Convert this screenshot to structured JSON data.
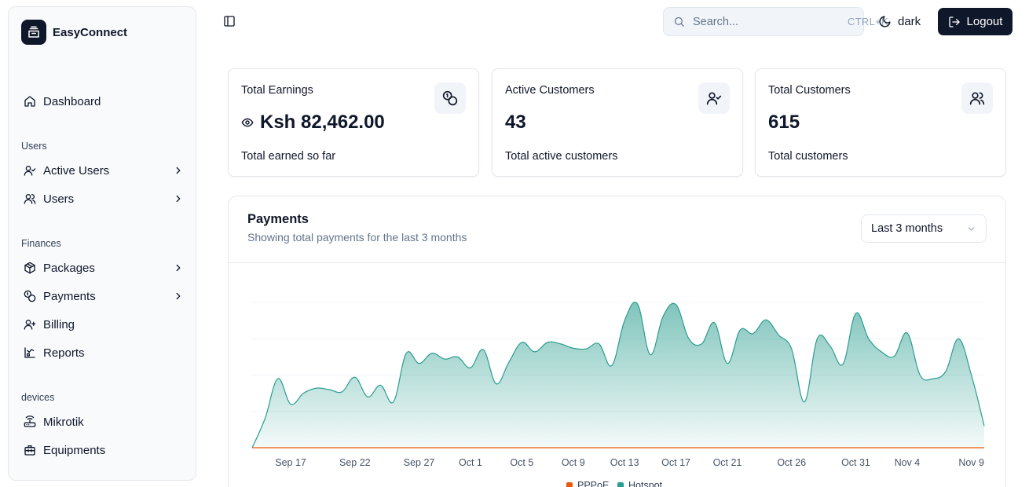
{
  "app": {
    "name": "EasyConnect"
  },
  "sidebar": {
    "dashboard": "Dashboard",
    "groups": {
      "users": "Users",
      "finances": "Finances",
      "devices": "devices"
    },
    "items": {
      "active_users": "Active Users",
      "users": "Users",
      "packages": "Packages",
      "payments": "Payments",
      "billing": "Billing",
      "reports": "Reports",
      "mikrotik": "Mikrotik",
      "equipments": "Equipments"
    }
  },
  "header": {
    "search_placeholder": "Search...",
    "search_shortcut": "CTRL+K",
    "theme_label": "dark",
    "logout_label": "Logout"
  },
  "stats": {
    "earnings": {
      "title": "Total Earnings",
      "value": "Ksh 82,462.00",
      "desc": "Total earned so far"
    },
    "active": {
      "title": "Active Customers",
      "value": "43",
      "desc": "Total active customers"
    },
    "total": {
      "title": "Total Customers",
      "value": "615",
      "desc": "Total customers"
    }
  },
  "payments": {
    "title": "Payments",
    "subtitle": "Showing total payments for the last 3 months",
    "range": "Last 3 months"
  },
  "colors": {
    "hotspot": "#2a9d8f",
    "pppoe": "#e8590c",
    "accent": "#0f172a"
  },
  "chart_data": {
    "type": "area",
    "x_ticks": [
      "Sep 17",
      "Sep 22",
      "Sep 27",
      "Oct 1",
      "Oct 5",
      "Oct 9",
      "Oct 13",
      "Oct 17",
      "Oct 21",
      "Oct 26",
      "Oct 31",
      "Nov 4",
      "Nov 9"
    ],
    "legend": [
      "PPPoE",
      "Hotspot"
    ],
    "series": [
      {
        "name": "Hotspot",
        "x": [
          "Sep 14",
          "Sep 15",
          "Sep 16",
          "Sep 17",
          "Sep 18",
          "Sep 19",
          "Sep 20",
          "Sep 21",
          "Sep 22",
          "Sep 23",
          "Sep 24",
          "Sep 25",
          "Sep 26",
          "Sep 27",
          "Sep 28",
          "Sep 29",
          "Sep 30",
          "Oct 1",
          "Oct 2",
          "Oct 3",
          "Oct 4",
          "Oct 5",
          "Oct 6",
          "Oct 7",
          "Oct 8",
          "Oct 9",
          "Oct 10",
          "Oct 11",
          "Oct 12",
          "Oct 13",
          "Oct 14",
          "Oct 15",
          "Oct 16",
          "Oct 17",
          "Oct 18",
          "Oct 19",
          "Oct 20",
          "Oct 21",
          "Oct 22",
          "Oct 23",
          "Oct 24",
          "Oct 25",
          "Oct 26",
          "Oct 27",
          "Oct 28",
          "Oct 29",
          "Oct 30",
          "Oct 31",
          "Nov 1",
          "Nov 2",
          "Nov 3",
          "Nov 4",
          "Nov 5",
          "Nov 6",
          "Nov 7",
          "Nov 8",
          "Nov 9",
          "Nov 10"
        ],
        "values": [
          0,
          40,
          95,
          60,
          75,
          82,
          80,
          77,
          97,
          70,
          86,
          63,
          130,
          116,
          130,
          122,
          125,
          110,
          135,
          88,
          118,
          145,
          132,
          145,
          143,
          137,
          136,
          143,
          113,
          175,
          198,
          128,
          181,
          197,
          150,
          143,
          172,
          116,
          162,
          157,
          176,
          155,
          136,
          63,
          150,
          140,
          115,
          185,
          150,
          132,
          126,
          158,
          100,
          95,
          105,
          150,
          100,
          30
        ]
      },
      {
        "name": "PPPoE",
        "x": [
          "Sep 14",
          "Nov 10"
        ],
        "values": [
          0,
          0
        ]
      }
    ]
  }
}
